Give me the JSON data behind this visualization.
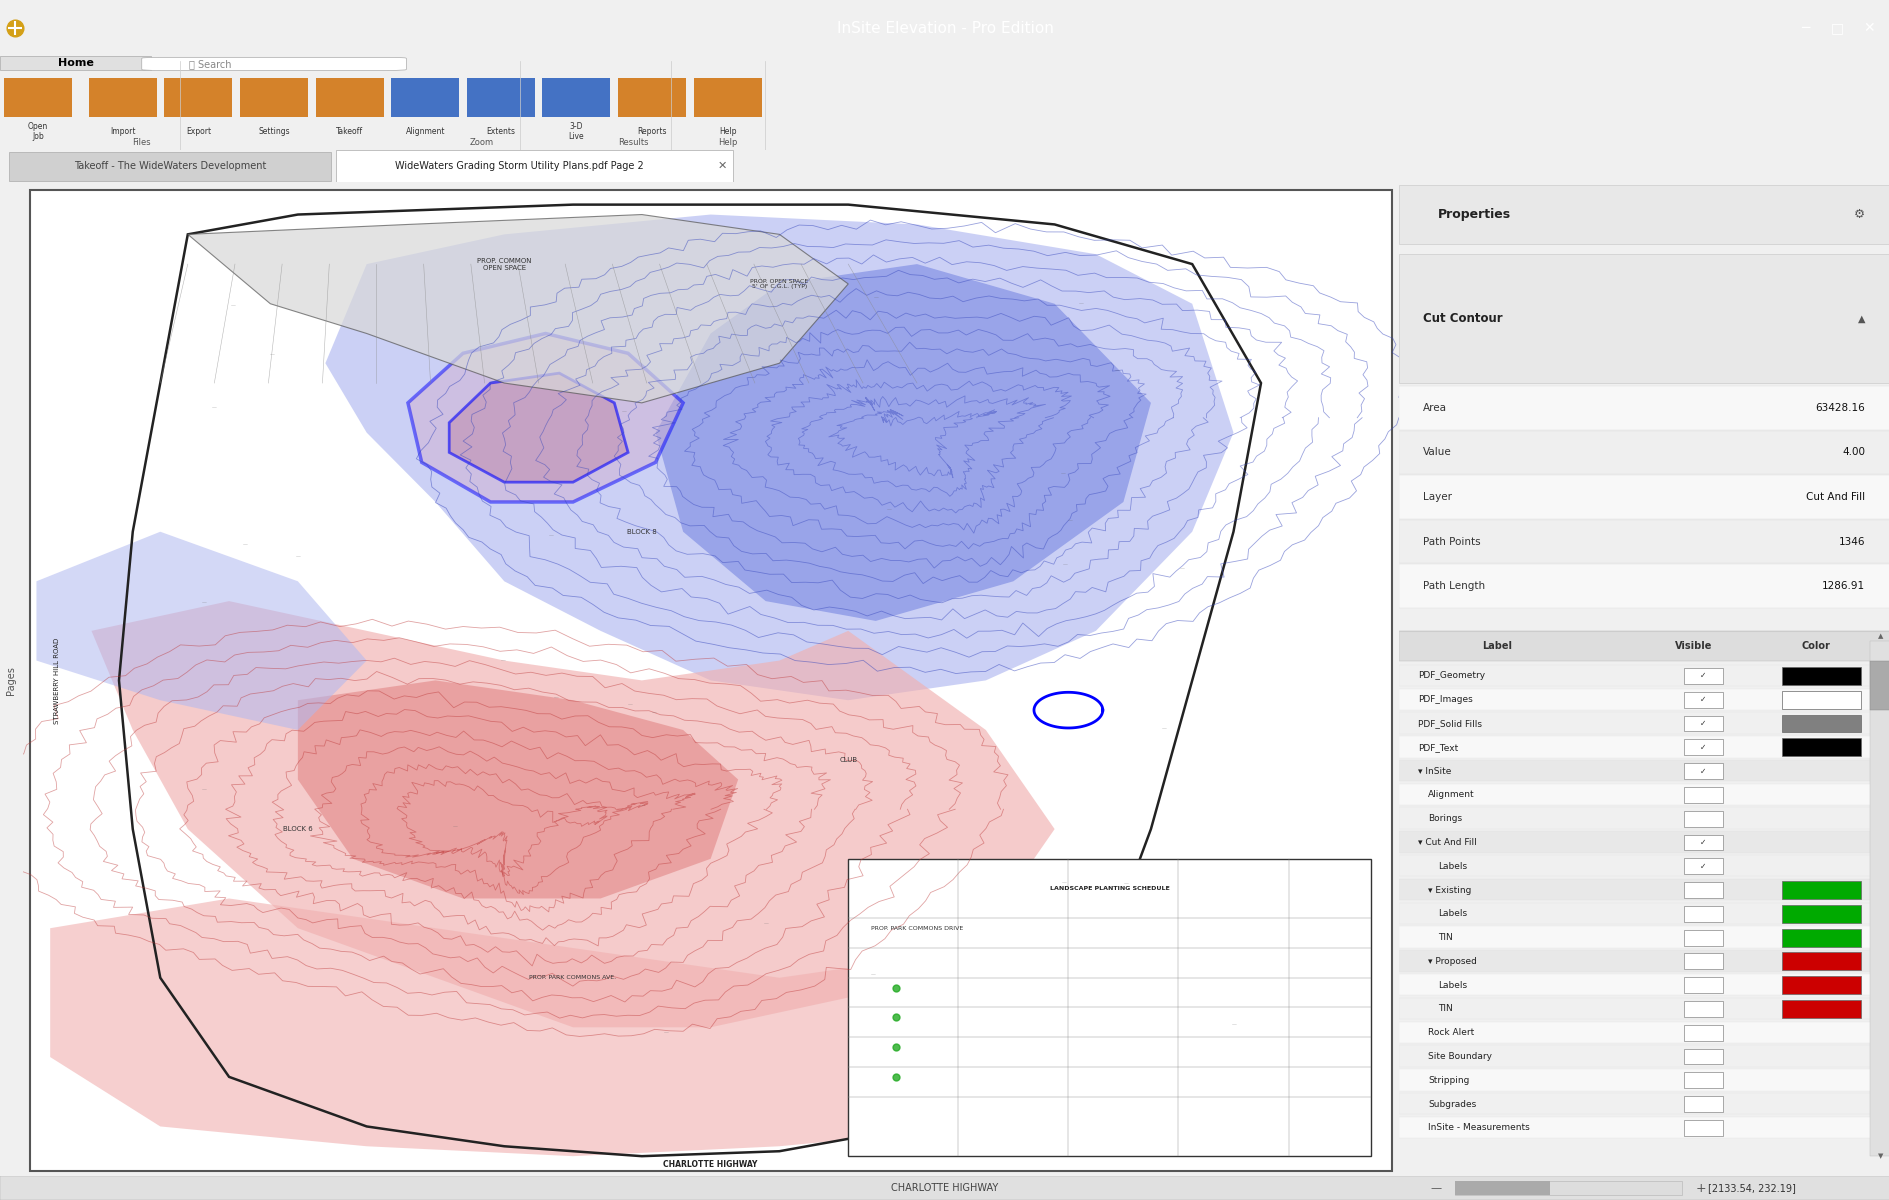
{
  "title_bar": "InSite Elevation - Pro Edition",
  "title_bar_bg": "#000000",
  "title_bar_text_color": "#ffffff",
  "app_bg": "#f0f0f0",
  "ribbon_bg": "#f8f8f8",
  "tab_active": "WideWaters Grading Storm Utility Plans.pdf Page 2",
  "tab_inactive": "Takeoff - The WideWaters Development",
  "map_bg": "#ffffff",
  "fill_color_red": "#e8a0a0",
  "fill_color_blue": "#a0a0e8",
  "contour_red": "#cc4444",
  "contour_blue": "#4444cc",
  "highlight_blue": "#0000ff",
  "properties_bg": "#f5f5f5",
  "properties_title": "Properties",
  "cut_contour_title": "Cut Contour",
  "props": {
    "Area": "63428.16",
    "Value": "4.00",
    "Layer": "Cut And Fill",
    "Path Points": "1346",
    "Path Length": "1286.91"
  },
  "layers": [
    {
      "name": "PDF_Geometry",
      "visible": true,
      "color": "#000000"
    },
    {
      "name": "PDF_Images",
      "visible": true,
      "color": "#ffffff"
    },
    {
      "name": "PDF_Solid Fills",
      "visible": true,
      "color": "#808080"
    },
    {
      "name": "PDF_Text",
      "visible": true,
      "color": "#000000"
    },
    {
      "name": "InSite",
      "visible": true,
      "color": null
    },
    {
      "name": "Alignment",
      "visible": false,
      "color": null
    },
    {
      "name": "Borings",
      "visible": false,
      "color": null
    },
    {
      "name": "Cut And Fill",
      "visible": true,
      "color": null
    },
    {
      "name": "Labels",
      "visible": true,
      "color": null
    },
    {
      "name": "Existing",
      "visible": false,
      "color": "#00aa00"
    },
    {
      "name": "Labels",
      "visible": false,
      "color": "#00aa00"
    },
    {
      "name": "TIN",
      "visible": false,
      "color": "#00aa00"
    },
    {
      "name": "Proposed",
      "visible": false,
      "color": "#cc0000"
    },
    {
      "name": "Labels",
      "visible": false,
      "color": "#cc0000"
    },
    {
      "name": "TIN",
      "visible": false,
      "color": "#cc0000"
    },
    {
      "name": "Rock Alert",
      "visible": false,
      "color": null
    },
    {
      "name": "Site Boundary",
      "visible": false,
      "color": null
    },
    {
      "name": "Stripping",
      "visible": false,
      "color": null
    },
    {
      "name": "Subgrades",
      "visible": false,
      "color": null
    },
    {
      "name": "InSite - Measurements",
      "visible": false,
      "color": null
    }
  ],
  "status_bar_text": "[2133.54, 232.19]",
  "bottom_bar_text": "CHARLOTTE HIGHWAY",
  "figsize": [
    18.9,
    12.0
  ],
  "dpi": 100
}
